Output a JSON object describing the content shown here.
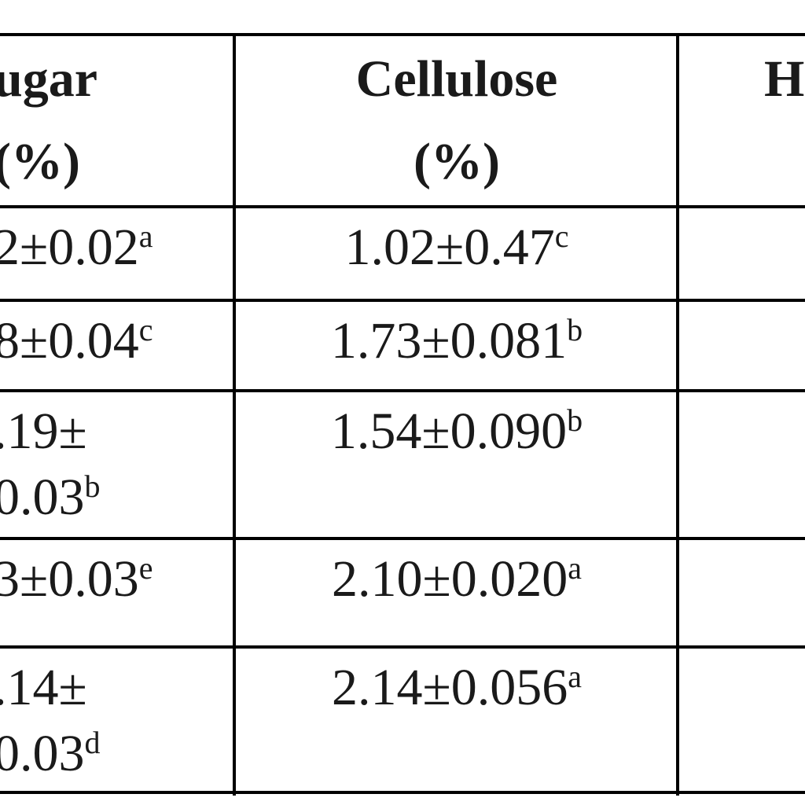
{
  "table": {
    "header": [
      [
        "ugar",
        "(%)"
      ],
      [
        "Cellulose",
        "(%)"
      ],
      [
        "H"
      ]
    ],
    "rows": [
      [
        {
          "lines": [
            "2±0.02"
          ],
          "sup": "a"
        },
        {
          "lines": [
            "1.02±0.47"
          ],
          "sup": "c"
        }
      ],
      [
        {
          "lines": [
            "8±0.04"
          ],
          "sup": "c"
        },
        {
          "lines": [
            "1.73±0.081"
          ],
          "sup": "b"
        }
      ],
      [
        {
          "lines": [
            ".19±",
            "0.03"
          ],
          "sup": "b"
        },
        {
          "lines": [
            "1.54±0.090"
          ],
          "sup": "b"
        }
      ],
      [
        {
          "lines": [
            "3±0.03"
          ],
          "sup": "e"
        },
        {
          "lines": [
            "2.10±0.020"
          ],
          "sup": "a"
        }
      ],
      [
        {
          "lines": [
            ".14±",
            "0.03"
          ],
          "sup": "d"
        },
        {
          "lines": [
            "2.14±0.056"
          ],
          "sup": "a"
        }
      ]
    ]
  }
}
